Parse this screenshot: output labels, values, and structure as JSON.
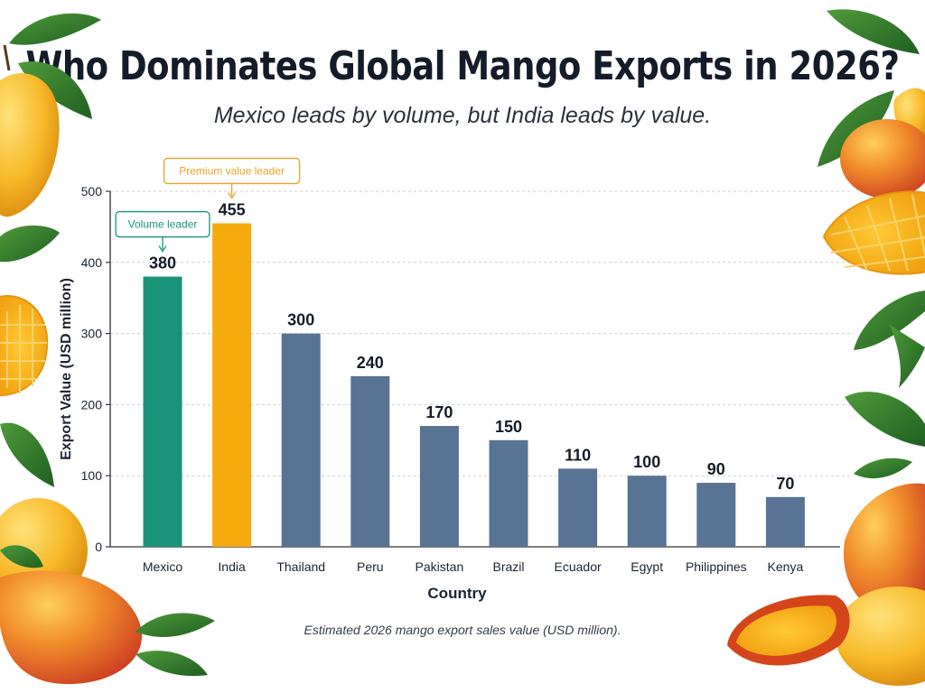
{
  "header": {
    "title": "Who Dominates Global Mango Exports in 2026?",
    "subtitle": "Mexico leads by volume, but India leads by value."
  },
  "caption": "Estimated 2026 mango export sales value (USD million).",
  "chart_data": {
    "type": "bar",
    "xlabel": "Country",
    "ylabel": "Export Value (USD million)",
    "ylim": [
      0,
      500
    ],
    "yticks": [
      0,
      100,
      200,
      300,
      400,
      500
    ],
    "grid": true,
    "categories": [
      "Mexico",
      "India",
      "Thailand",
      "Peru",
      "Pakistan",
      "Brazil",
      "Ecuador",
      "Egypt",
      "Philippines",
      "Kenya"
    ],
    "values": [
      380,
      455,
      300,
      240,
      170,
      150,
      110,
      100,
      90,
      70
    ],
    "bar_colors": [
      "#1a9478",
      "#f5ab0e",
      "#587394",
      "#587394",
      "#587394",
      "#587394",
      "#587394",
      "#587394",
      "#587394",
      "#587394"
    ],
    "annotations": [
      {
        "text": "Volume leader",
        "category": "Mexico",
        "color": "#1a9478"
      },
      {
        "text": "Premium value leader",
        "category": "India",
        "color": "#f0a020"
      }
    ]
  }
}
